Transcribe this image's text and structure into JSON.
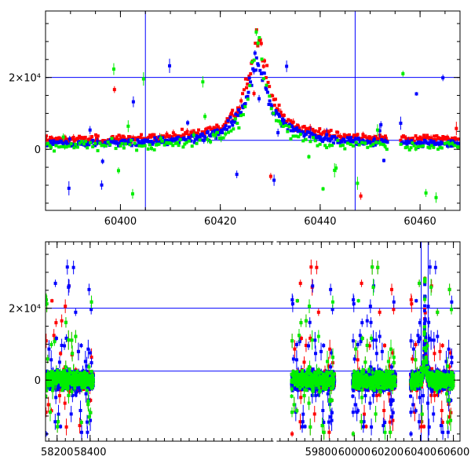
{
  "chart_data": [
    {
      "id": "top",
      "type": "scatter",
      "title": "",
      "xlabel": "",
      "ylabel": "",
      "xlim": [
        60385,
        60468
      ],
      "ylim": [
        -17000,
        38500
      ],
      "xticks": [
        {
          "v": 60400,
          "label": "60400"
        },
        {
          "v": 60420,
          "label": "60420"
        },
        {
          "v": 60440,
          "label": "60440"
        },
        {
          "v": 60460,
          "label": "60460"
        }
      ],
      "yticks": [
        {
          "v": 0,
          "label": "0"
        },
        {
          "v": 20000,
          "label": "2×10⁴"
        }
      ],
      "hlines": [
        20000,
        2500
      ],
      "vlines": [
        60405,
        60447
      ],
      "grid": false,
      "event": {
        "t0": 60427.5,
        "peak_red": 30000,
        "peak_blue": 24000,
        "peak_green": 31000
      },
      "series": [
        {
          "color": "#ff0000",
          "values": "microlensing light curve, baseline ~2500, peak ~30000 near 60427"
        },
        {
          "color": "#0000ff",
          "values": "microlensing light curve, baseline ~1500, peak ~24000 near 60426"
        },
        {
          "color": "#00ee00",
          "values": "microlensing light curve, baseline ~1000, peak ~31000 near 60428"
        }
      ]
    },
    {
      "id": "bottom",
      "type": "scatter",
      "title": "",
      "xlabel": "",
      "ylabel": "",
      "xlim": [
        58130,
        60640
      ],
      "ylim": [
        -17000,
        38500
      ],
      "xticks": [
        {
          "v": 58200,
          "label": "58200"
        },
        {
          "v": 58400,
          "label": "58400"
        },
        {
          "v": 59800,
          "label": "59800"
        },
        {
          "v": 60000,
          "label": "60000"
        },
        {
          "v": 60200,
          "label": "60200"
        },
        {
          "v": 60400,
          "label": "60400"
        },
        {
          "v": 60600,
          "label": "60600"
        }
      ],
      "yticks": [
        {
          "v": 0,
          "label": "0"
        },
        {
          "v": 20000,
          "label": "2×10⁴"
        }
      ],
      "hlines": [
        20000,
        2500
      ],
      "vlines": [
        60405,
        60447
      ],
      "axis_break": true,
      "grid": false,
      "seasons": [
        {
          "start": 58130,
          "end": 58420
        },
        {
          "start": 59620,
          "end": 59880
        },
        {
          "start": 59990,
          "end": 60250
        },
        {
          "start": 60340,
          "end": 60600
        }
      ],
      "series": [
        {
          "color": "#ff0000",
          "values": "dense scatter around 0 in each season with event at 60427"
        },
        {
          "color": "#0000ff",
          "values": "dense scatter around 0 in each season with event at 60427"
        },
        {
          "color": "#00ee00",
          "values": "dense scatter around 0 in each season with event at 60427"
        }
      ]
    }
  ]
}
